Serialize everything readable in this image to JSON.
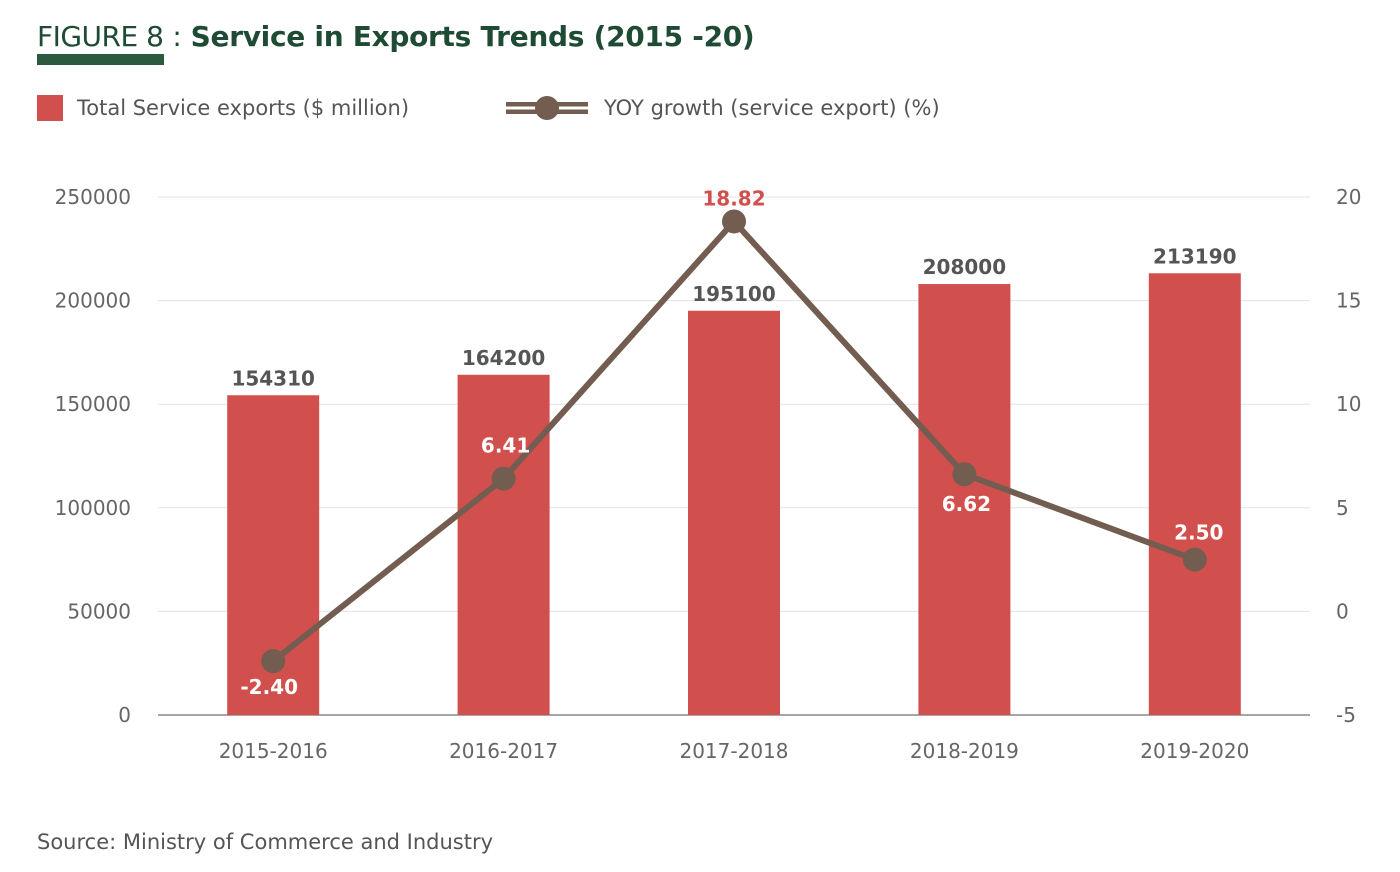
{
  "figure": {
    "label": "FIGURE 8",
    "separator": " : ",
    "title": "Service in Exports Trends (2015 -20)",
    "accent_color": "#2b5a3f"
  },
  "source": "Source: Ministry of Commerce and Industry",
  "chart_data": {
    "type": "bar",
    "categories": [
      "2015-2016",
      "2016-2017",
      "2017-2018",
      "2018-2019",
      "2019-2020"
    ],
    "series": [
      {
        "name": "Total Service exports ($ million)",
        "type": "bar",
        "axis": "left",
        "color": "#d1504e",
        "values": [
          154310,
          164200,
          195100,
          208000,
          213190
        ],
        "labels": [
          "154310",
          "164200",
          "195100",
          "208000",
          "213190"
        ]
      },
      {
        "name": "YOY growth (service export) (%)",
        "type": "line",
        "axis": "right",
        "color": "#725d50",
        "values": [
          -2.4,
          6.41,
          18.82,
          6.62,
          2.5
        ],
        "labels": [
          "-2.40",
          "6.41",
          "18.82",
          "6.62",
          "2.50"
        ],
        "label_colors": [
          "#ffffff",
          "#ffffff",
          "#d1504e",
          "#ffffff",
          "#ffffff"
        ]
      }
    ],
    "y_left": {
      "ylim": [
        0,
        250000
      ],
      "ticks": [
        "0",
        "50000",
        "100000",
        "150000",
        "200000",
        "250000"
      ]
    },
    "y_right": {
      "ylim": [
        -5,
        20
      ],
      "ticks": [
        "-5",
        "0",
        "5",
        "10",
        "15",
        "20"
      ]
    },
    "grid": true,
    "legend": "top-left"
  }
}
